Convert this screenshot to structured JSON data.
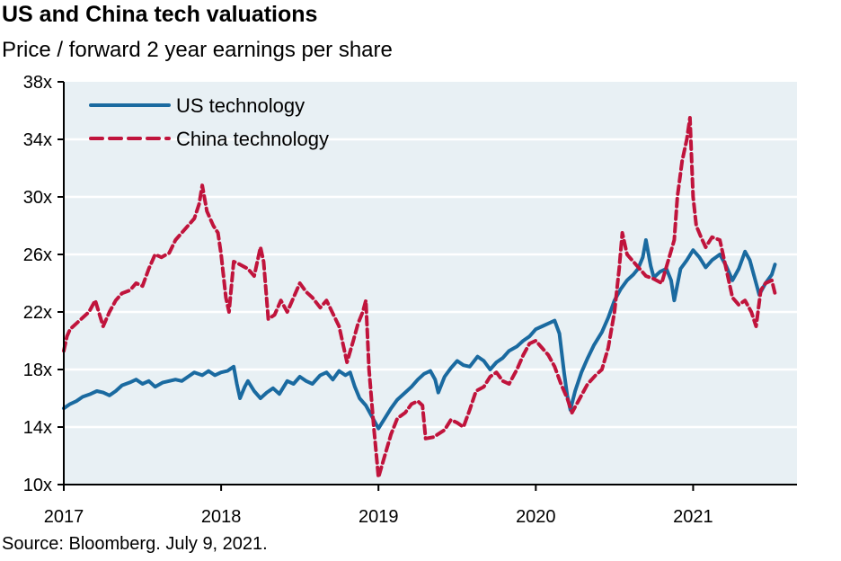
{
  "chart_data": {
    "type": "line",
    "title": "US and China tech valuations",
    "subtitle": "Price / forward 2 year earnings per share",
    "xlabel": "",
    "ylabel": "",
    "source": "Source: Bloomberg. July 9, 2021.",
    "xlim": [
      2017.0,
      2021.66
    ],
    "ylim": [
      10,
      38
    ],
    "grid": true,
    "legend_position": "top-left",
    "x_ticks": [
      2017,
      2018,
      2019,
      2020,
      2021
    ],
    "x_tick_labels": [
      "2017",
      "2018",
      "2019",
      "2020",
      "2021"
    ],
    "y_ticks": [
      10,
      14,
      18,
      22,
      26,
      30,
      34,
      38
    ],
    "y_tick_labels": [
      "10x",
      "14x",
      "18x",
      "22x",
      "26x",
      "30x",
      "34x",
      "38x"
    ],
    "colors": {
      "plot_background": "#e8f0f4",
      "grid": "#ffffff",
      "us": "#1a6aa0",
      "china": "#c0143c"
    },
    "series": [
      {
        "name": "US technology",
        "style": "solid",
        "x": [
          2017.0,
          2017.04,
          2017.08,
          2017.12,
          2017.17,
          2017.21,
          2017.25,
          2017.29,
          2017.33,
          2017.37,
          2017.42,
          2017.46,
          2017.5,
          2017.54,
          2017.58,
          2017.63,
          2017.67,
          2017.71,
          2017.75,
          2017.79,
          2017.83,
          2017.88,
          2017.92,
          2017.96,
          2018.0,
          2018.04,
          2018.08,
          2018.1,
          2018.12,
          2018.15,
          2018.17,
          2018.21,
          2018.25,
          2018.29,
          2018.33,
          2018.37,
          2018.42,
          2018.46,
          2018.5,
          2018.54,
          2018.58,
          2018.63,
          2018.67,
          2018.71,
          2018.75,
          2018.79,
          2018.82,
          2018.85,
          2018.88,
          2018.92,
          2018.95,
          2018.98,
          2019.0,
          2019.04,
          2019.08,
          2019.12,
          2019.17,
          2019.21,
          2019.25,
          2019.29,
          2019.33,
          2019.36,
          2019.38,
          2019.42,
          2019.46,
          2019.5,
          2019.54,
          2019.58,
          2019.63,
          2019.67,
          2019.71,
          2019.75,
          2019.79,
          2019.83,
          2019.88,
          2019.92,
          2019.96,
          2020.0,
          2020.04,
          2020.08,
          2020.12,
          2020.15,
          2020.18,
          2020.2,
          2020.22,
          2020.25,
          2020.29,
          2020.33,
          2020.37,
          2020.42,
          2020.46,
          2020.5,
          2020.54,
          2020.58,
          2020.62,
          2020.65,
          2020.68,
          2020.7,
          2020.73,
          2020.75,
          2020.79,
          2020.83,
          2020.86,
          2020.88,
          2020.92,
          2020.96,
          2021.0,
          2021.04,
          2021.08,
          2021.12,
          2021.17,
          2021.21,
          2021.25,
          2021.29,
          2021.33,
          2021.36,
          2021.4,
          2021.42,
          2021.46,
          2021.5,
          2021.52
        ],
        "values": [
          15.3,
          15.6,
          15.8,
          16.1,
          16.3,
          16.5,
          16.4,
          16.2,
          16.5,
          16.9,
          17.1,
          17.3,
          17.0,
          17.2,
          16.8,
          17.1,
          17.2,
          17.3,
          17.2,
          17.5,
          17.8,
          17.6,
          17.9,
          17.6,
          17.8,
          17.9,
          18.2,
          17.0,
          16.0,
          16.8,
          17.2,
          16.5,
          16.0,
          16.4,
          16.7,
          16.3,
          17.2,
          17.0,
          17.5,
          17.2,
          17.0,
          17.6,
          17.8,
          17.3,
          17.9,
          17.6,
          17.8,
          16.8,
          16.0,
          15.5,
          14.9,
          14.3,
          13.9,
          14.6,
          15.3,
          15.9,
          16.4,
          16.8,
          17.3,
          17.7,
          17.9,
          17.3,
          16.4,
          17.5,
          18.1,
          18.6,
          18.3,
          18.2,
          18.9,
          18.6,
          18.0,
          18.5,
          18.8,
          19.3,
          19.6,
          20.0,
          20.3,
          20.8,
          21.0,
          21.2,
          21.4,
          20.5,
          17.8,
          16.2,
          15.2,
          16.5,
          17.8,
          18.8,
          19.7,
          20.6,
          21.6,
          22.8,
          23.6,
          24.2,
          24.6,
          25.0,
          25.8,
          27.0,
          25.2,
          24.4,
          24.8,
          25.0,
          24.2,
          22.8,
          25.0,
          25.6,
          26.3,
          25.8,
          25.1,
          25.6,
          26.0,
          25.2,
          24.2,
          25.0,
          26.2,
          25.6,
          24.0,
          23.2,
          24.0,
          24.6,
          25.3
        ]
      },
      {
        "name": "China technology",
        "style": "dashed",
        "x": [
          2017.0,
          2017.02,
          2017.04,
          2017.08,
          2017.12,
          2017.16,
          2017.2,
          2017.25,
          2017.29,
          2017.33,
          2017.37,
          2017.42,
          2017.46,
          2017.5,
          2017.54,
          2017.58,
          2017.62,
          2017.67,
          2017.71,
          2017.75,
          2017.79,
          2017.83,
          2017.86,
          2017.88,
          2017.91,
          2017.95,
          2017.98,
          2018.0,
          2018.03,
          2018.05,
          2018.08,
          2018.12,
          2018.17,
          2018.21,
          2018.25,
          2018.27,
          2018.3,
          2018.34,
          2018.38,
          2018.42,
          2018.46,
          2018.5,
          2018.54,
          2018.58,
          2018.63,
          2018.67,
          2018.71,
          2018.75,
          2018.78,
          2018.8,
          2018.84,
          2018.87,
          2018.9,
          2018.92,
          2018.94,
          2018.97,
          2019.0,
          2019.04,
          2019.08,
          2019.12,
          2019.17,
          2019.21,
          2019.25,
          2019.28,
          2019.3,
          2019.35,
          2019.42,
          2019.46,
          2019.5,
          2019.54,
          2019.58,
          2019.62,
          2019.67,
          2019.71,
          2019.75,
          2019.79,
          2019.83,
          2019.88,
          2019.92,
          2019.96,
          2020.0,
          2020.04,
          2020.08,
          2020.12,
          2020.16,
          2020.2,
          2020.23,
          2020.25,
          2020.29,
          2020.33,
          2020.38,
          2020.42,
          2020.46,
          2020.5,
          2020.53,
          2020.55,
          2020.58,
          2020.62,
          2020.66,
          2020.7,
          2020.75,
          2020.8,
          2020.84,
          2020.88,
          2020.9,
          2020.93,
          2020.96,
          2020.98,
          2021.0,
          2021.02,
          2021.05,
          2021.08,
          2021.12,
          2021.17,
          2021.21,
          2021.25,
          2021.29,
          2021.33,
          2021.37,
          2021.4,
          2021.43,
          2021.46,
          2021.5,
          2021.52
        ],
        "values": [
          19.3,
          20.3,
          20.8,
          21.2,
          21.6,
          22.0,
          22.8,
          21.0,
          22.0,
          22.8,
          23.3,
          23.5,
          24.0,
          23.8,
          25.0,
          26.0,
          25.8,
          26.1,
          27.0,
          27.5,
          28.0,
          28.5,
          29.5,
          30.8,
          29.0,
          28.0,
          27.5,
          26.0,
          23.0,
          22.0,
          25.5,
          25.3,
          25.0,
          24.5,
          26.5,
          25.5,
          21.5,
          21.8,
          22.8,
          22.0,
          23.0,
          24.0,
          23.4,
          23.0,
          22.3,
          22.8,
          21.9,
          21.0,
          19.5,
          18.5,
          20.0,
          21.2,
          22.0,
          22.8,
          18.0,
          14.0,
          10.5,
          12.0,
          13.5,
          14.6,
          15.0,
          15.6,
          15.8,
          15.5,
          13.2,
          13.3,
          13.8,
          14.5,
          14.3,
          14.0,
          15.2,
          16.5,
          16.8,
          17.5,
          17.8,
          17.2,
          17.0,
          18.0,
          19.0,
          19.8,
          20.0,
          19.5,
          19.0,
          18.2,
          17.0,
          16.0,
          15.0,
          15.4,
          16.2,
          17.0,
          17.6,
          18.0,
          19.5,
          22.0,
          25.0,
          27.5,
          26.0,
          25.5,
          25.0,
          24.5,
          24.3,
          24.0,
          25.5,
          27.0,
          30.0,
          32.5,
          34.0,
          35.5,
          30.0,
          28.0,
          27.2,
          26.5,
          27.2,
          27.0,
          25.0,
          23.0,
          22.5,
          22.8,
          22.0,
          21.0,
          23.5,
          24.0,
          24.2,
          23.3
        ]
      }
    ]
  }
}
